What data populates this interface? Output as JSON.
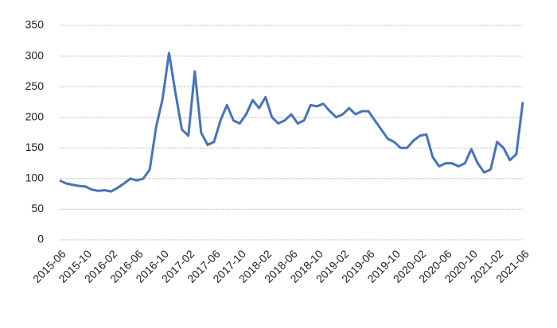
{
  "chart_data": {
    "type": "line",
    "x": [
      "2015-06",
      "2015-07",
      "2015-08",
      "2015-09",
      "2015-10",
      "2015-11",
      "2015-12",
      "2016-01",
      "2016-02",
      "2016-03",
      "2016-04",
      "2016-05",
      "2016-06",
      "2016-07",
      "2016-08",
      "2016-09",
      "2016-10",
      "2016-11",
      "2016-12",
      "2017-01",
      "2017-02",
      "2017-03",
      "2017-04",
      "2017-05",
      "2017-06",
      "2017-07",
      "2017-08",
      "2017-09",
      "2017-10",
      "2017-11",
      "2017-12",
      "2018-01",
      "2018-02",
      "2018-03",
      "2018-04",
      "2018-05",
      "2018-06",
      "2018-07",
      "2018-08",
      "2018-09",
      "2018-10",
      "2018-11",
      "2018-12",
      "2019-01",
      "2019-02",
      "2019-03",
      "2019-04",
      "2019-05",
      "2019-06",
      "2019-07",
      "2019-08",
      "2019-09",
      "2019-10",
      "2019-11",
      "2019-12",
      "2020-01",
      "2020-02",
      "2020-03",
      "2020-04",
      "2020-05",
      "2020-06",
      "2020-07",
      "2020-08",
      "2020-09",
      "2020-10",
      "2020-11",
      "2020-12",
      "2021-01",
      "2021-02",
      "2021-03",
      "2021-04",
      "2021-05",
      "2021-06"
    ],
    "series": [
      {
        "color": "#4472c4",
        "values": [
          97,
          92,
          90,
          88,
          87,
          82,
          80,
          81,
          79,
          85,
          92,
          100,
          97,
          100,
          115,
          185,
          230,
          305,
          240,
          180,
          170,
          275,
          175,
          155,
          160,
          195,
          220,
          195,
          190,
          205,
          228,
          215,
          233,
          200,
          190,
          195,
          205,
          190,
          195,
          220,
          218,
          222,
          210,
          200,
          205,
          215,
          205,
          210,
          210,
          195,
          180,
          165,
          160,
          150,
          150,
          162,
          170,
          172,
          135,
          120,
          125,
          125,
          120,
          125,
          148,
          125,
          110,
          115,
          160,
          150,
          130,
          140,
          225
        ]
      }
    ],
    "xticks": [
      "2015-06",
      "2015-10",
      "2016-02",
      "2016-06",
      "2016-10",
      "2017-02",
      "2017-06",
      "2017-10",
      "2018-02",
      "2018-06",
      "2018-10",
      "2019-02",
      "2019-06",
      "2019-10",
      "2020-02",
      "2020-06",
      "2020-10",
      "2021-02",
      "2021-06"
    ],
    "ylim": [
      0,
      350
    ],
    "yticks": [
      0,
      50,
      100,
      150,
      200,
      250,
      300,
      350
    ],
    "grid": true
  }
}
